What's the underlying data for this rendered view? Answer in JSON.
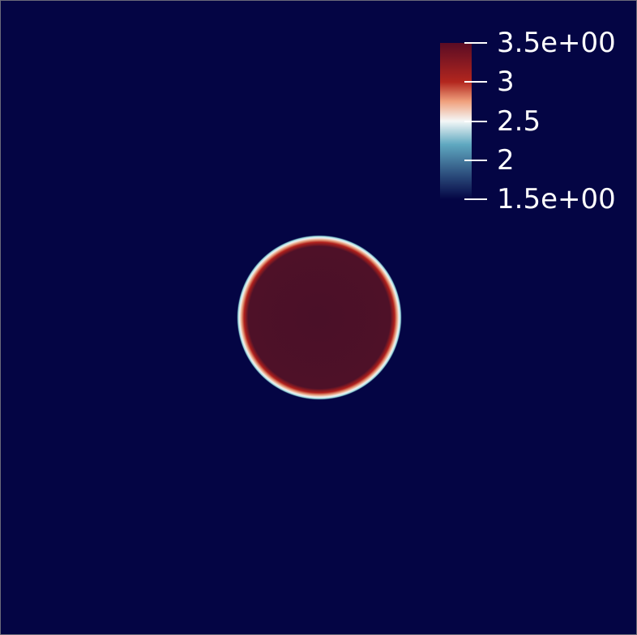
{
  "colormap": {
    "name": "Cool to Warm (Extended)",
    "stops": [
      {
        "value": 1.5,
        "color": "#040544"
      },
      {
        "value": 1.8,
        "color": "#2a4a7a"
      },
      {
        "value": 2.2,
        "color": "#5fa8c0"
      },
      {
        "value": 2.5,
        "color": "#f4f7f7"
      },
      {
        "value": 2.75,
        "color": "#f0a17d"
      },
      {
        "value": 3.0,
        "color": "#b3261e"
      },
      {
        "value": 3.5,
        "color": "#5a0c24"
      }
    ]
  },
  "colorbar": {
    "range": [
      1.5,
      3.5
    ],
    "ticks": [
      {
        "value": 3.5,
        "label": "3.5e+00"
      },
      {
        "value": 3.0,
        "label": "3"
      },
      {
        "value": 2.5,
        "label": "2.5"
      },
      {
        "value": 2.0,
        "label": "2"
      },
      {
        "value": 1.5,
        "label": "1.5e+00"
      }
    ]
  },
  "field": {
    "background_value": 1.5,
    "inside_value": 3.5,
    "shape": "circle"
  },
  "colors": {
    "background": "#040544",
    "inside": "#4a1028",
    "rim_red": "#b0201c",
    "rim_white": "#f0f4f4",
    "rim_cyan": "#8ccfd6",
    "text": "#ffffff"
  }
}
